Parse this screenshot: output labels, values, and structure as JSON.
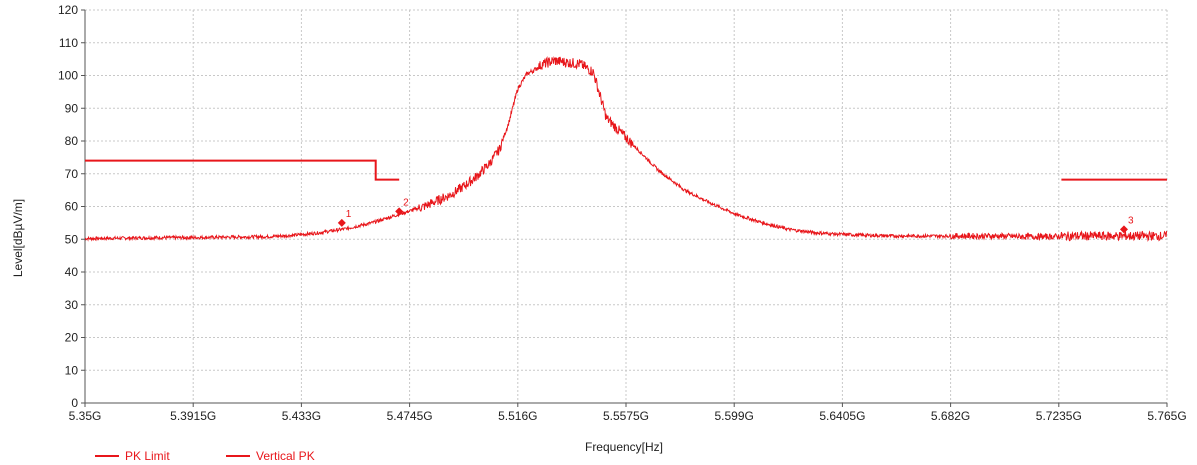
{
  "chart_data": {
    "type": "line",
    "xlabel": "Frequency[Hz]",
    "ylabel": "Level[dBµV/m]",
    "xlim": [
      5.35,
      5.765
    ],
    "ylim": [
      0,
      120
    ],
    "grid": true,
    "legend_position": "bottom-left",
    "x_ticks": [
      {
        "value": 5.35,
        "label": "5.35G"
      },
      {
        "value": 5.3915,
        "label": "5.3915G"
      },
      {
        "value": 5.433,
        "label": "5.433G"
      },
      {
        "value": 5.4745,
        "label": "5.4745G"
      },
      {
        "value": 5.516,
        "label": "5.516G"
      },
      {
        "value": 5.5575,
        "label": "5.5575G"
      },
      {
        "value": 5.599,
        "label": "5.599G"
      },
      {
        "value": 5.6405,
        "label": "5.6405G"
      },
      {
        "value": 5.682,
        "label": "5.682G"
      },
      {
        "value": 5.7235,
        "label": "5.7235G"
      },
      {
        "value": 5.765,
        "label": "5.765G"
      }
    ],
    "y_ticks": [
      {
        "value": 0,
        "label": "0"
      },
      {
        "value": 10,
        "label": "10"
      },
      {
        "value": 20,
        "label": "20"
      },
      {
        "value": 30,
        "label": "30"
      },
      {
        "value": 40,
        "label": "40"
      },
      {
        "value": 50,
        "label": "50"
      },
      {
        "value": 60,
        "label": "60"
      },
      {
        "value": 70,
        "label": "70"
      },
      {
        "value": 80,
        "label": "80"
      },
      {
        "value": 90,
        "label": "90"
      },
      {
        "value": 100,
        "label": "100"
      },
      {
        "value": 110,
        "label": "110"
      },
      {
        "value": 120,
        "label": "120"
      }
    ],
    "series": [
      {
        "name": "PK Limit",
        "color": "#e8161b",
        "segments": [
          [
            [
              5.35,
              74
            ],
            [
              5.4615,
              74
            ],
            [
              5.4615,
              68.2
            ],
            [
              5.4705,
              68.2
            ]
          ],
          [
            [
              5.7245,
              68.2
            ],
            [
              5.765,
              68.2
            ]
          ]
        ]
      },
      {
        "name": "Vertical PK",
        "color": "#e8161b",
        "x": [
          5.35,
          5.36,
          5.37,
          5.38,
          5.39,
          5.4,
          5.41,
          5.42,
          5.43,
          5.44,
          5.45,
          5.46,
          5.47,
          5.48,
          5.49,
          5.495,
          5.5,
          5.505,
          5.509,
          5.5105,
          5.5125,
          5.516,
          5.5195,
          5.522,
          5.5238,
          5.5255,
          5.53,
          5.535,
          5.54,
          5.545,
          5.55,
          5.56,
          5.57,
          5.58,
          5.59,
          5.6,
          5.61,
          5.62,
          5.63,
          5.64,
          5.65,
          5.66,
          5.67,
          5.68,
          5.69,
          5.7,
          5.71,
          5.72,
          5.73,
          5.74,
          5.75,
          5.765
        ],
        "y": [
          50.2,
          50.3,
          50.4,
          50.5,
          50.5,
          50.6,
          50.7,
          50.8,
          51.2,
          52.0,
          53.2,
          55.0,
          57.5,
          60.0,
          63.5,
          66.0,
          69.0,
          73.0,
          77.5,
          81.0,
          85.5,
          96.0,
          100.5,
          101.5,
          102.5,
          103.5,
          104.5,
          104.0,
          103.5,
          101.0,
          87.0,
          79.0,
          71.0,
          65.0,
          61.0,
          57.5,
          55.0,
          53.0,
          52.0,
          51.5,
          51.2,
          51.0,
          51.0,
          51.0,
          51.0,
          51.0,
          50.8,
          50.8,
          51.0,
          51.0,
          51.0,
          51.0
        ]
      }
    ],
    "markers": [
      {
        "label": "1",
        "x": 5.4485,
        "y": 55
      },
      {
        "label": "2",
        "x": 5.4705,
        "y": 58.5
      },
      {
        "label": "3",
        "x": 5.7485,
        "y": 53
      }
    ]
  }
}
